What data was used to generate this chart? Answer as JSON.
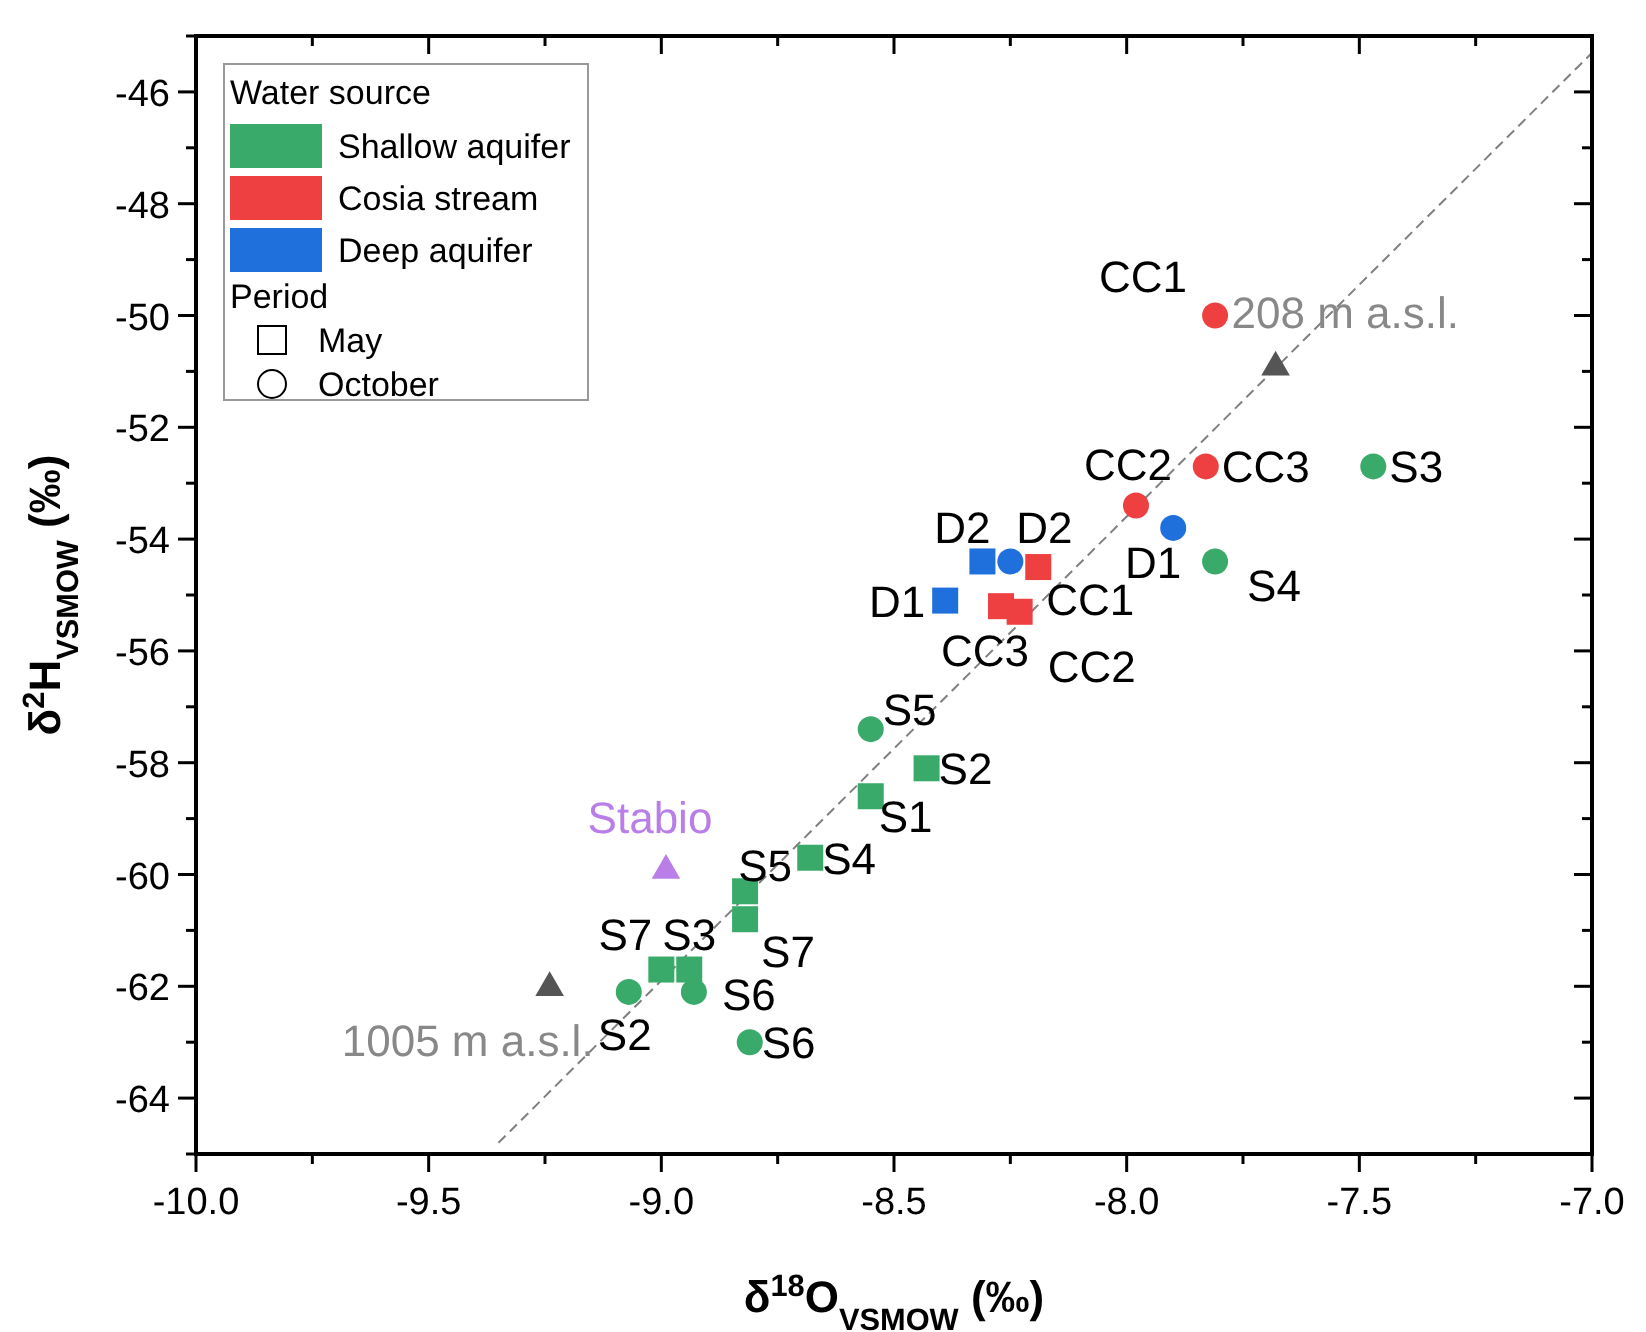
{
  "chart_data": {
    "type": "scatter",
    "xlabel": "δ$^{18}$O$_{VSMOW}$ (‰)",
    "ylabel": "δ$^{2}$H$_{VSMOW}$ (‰)",
    "legend_title": "Water source",
    "legend": "top left",
    "grid": false,
    "xlim": [
      -10,
      -7
    ],
    "ylim": [
      -65,
      -45
    ],
    "xticks": [
      {
        "value": -10,
        "label": "-10.0"
      },
      {
        "value": -9.75,
        "label": null
      },
      {
        "value": -9.5,
        "label": "-9.5"
      },
      {
        "value": -9.25,
        "label": null
      },
      {
        "value": -9,
        "label": "-9.0"
      },
      {
        "value": -8.75,
        "label": null
      },
      {
        "value": -8.5,
        "label": "-8.5"
      },
      {
        "value": -8.25,
        "label": null
      },
      {
        "value": -8,
        "label": "-8.0"
      },
      {
        "value": -7.75,
        "label": null
      },
      {
        "value": -7.5,
        "label": "-7.5"
      },
      {
        "value": -7.25,
        "label": null
      },
      {
        "value": -7,
        "label": "-7.0"
      }
    ],
    "yticks": [
      {
        "value": -65,
        "label": null
      },
      -64,
      {
        "value": -63,
        "label": null
      },
      -62,
      {
        "value": -61,
        "label": null
      },
      -60,
      {
        "value": -59,
        "label": null
      },
      -58,
      {
        "value": -57,
        "label": null
      },
      -56,
      {
        "value": -55,
        "label": null
      },
      -54,
      {
        "value": -53,
        "label": null
      },
      -52,
      {
        "value": -51,
        "label": null
      },
      -50,
      {
        "value": -49,
        "label": null
      },
      -48,
      {
        "value": -47,
        "label": null
      },
      -46,
      {
        "value": -45,
        "label": null
      }
    ],
    "series": [
      {
        "type": "line",
        "line_style": "dashed",
        "color": "#808080",
        "x": [
          -9.35,
          -7.0
        ],
        "values": [
          -64.8,
          -45.3
        ]
      },
      {
        "name": "Shallow aquifer",
        "color": "#3aaa6a",
        "marker": "square",
        "x": [
          -8.43,
          -8.55,
          -8.68,
          -8.82,
          -8.82,
          -9.0,
          -8.94
        ],
        "values": [
          -58.1,
          -58.6,
          -59.7,
          -60.3,
          -60.8,
          -61.7,
          -61.7
        ]
      },
      {
        "color": "#3aaa6a",
        "marker": "circle",
        "x": [
          -8.55,
          -9.07,
          -8.93,
          -8.81,
          -7.47,
          -7.81
        ],
        "values": [
          -57.4,
          -62.1,
          -62.1,
          -63.0,
          -52.7,
          -54.4
        ]
      },
      {
        "name": "Cosia stream",
        "color": "#ee4040",
        "marker": "square",
        "x": [
          -8.19,
          -8.27,
          -8.23
        ],
        "values": [
          -54.5,
          -55.2,
          -55.3
        ]
      },
      {
        "color": "#ee4040",
        "marker": "circle",
        "x": [
          -7.81,
          -7.83,
          -7.98
        ],
        "values": [
          -50.0,
          -52.7,
          -53.4
        ]
      },
      {
        "name": "Deep aquifer",
        "color": "#1f6fdc",
        "marker": "square",
        "x": [
          -8.31,
          -8.39
        ],
        "values": [
          -54.4,
          -55.1
        ]
      },
      {
        "color": "#1f6fdc",
        "marker": "circle",
        "x": [
          -8.25,
          -7.9
        ],
        "values": [
          -54.4,
          -53.8
        ]
      },
      {
        "color": "#555555",
        "marker": "triangle",
        "x": [
          -7.68,
          -9.24
        ],
        "values": [
          -50.9,
          -62.0
        ]
      },
      {
        "color": "#b97ee8",
        "marker": "triangle",
        "x": [
          -8.99
        ],
        "values": [
          -59.9
        ]
      }
    ],
    "annotations": [
      "Period",
      "May",
      "October",
      {
        "text": "CC1",
        "x": -7.81,
        "y": -50.0
      },
      {
        "text": "208 m a.s.l.",
        "x": -7.68,
        "y": -50.9
      },
      {
        "text": "CC2",
        "x": -7.98,
        "y": -53.4
      },
      {
        "text": "CC3",
        "x": -7.83,
        "y": -52.7
      },
      {
        "text": "S3",
        "x": -7.47,
        "y": -52.7
      },
      {
        "text": "D1",
        "x": -7.9,
        "y": -53.8
      },
      {
        "text": "S4",
        "x": -7.81,
        "y": -54.4
      },
      {
        "text": "D2",
        "x": -8.31,
        "y": -54.4
      },
      {
        "text": "D2",
        "x": -8.25,
        "y": -54.4
      },
      {
        "text": "D1",
        "x": -8.39,
        "y": -55.1
      },
      {
        "text": "CC1",
        "x": -8.19,
        "y": -54.5
      },
      {
        "text": "CC3",
        "x": -8.27,
        "y": -55.2
      },
      {
        "text": "CC2",
        "x": -8.23,
        "y": -55.3
      },
      {
        "text": "S5",
        "x": -8.55,
        "y": -57.4
      },
      {
        "text": "S2",
        "x": -8.43,
        "y": -58.1
      },
      {
        "text": "S1",
        "x": -8.55,
        "y": -58.6
      },
      {
        "text": "Stabio",
        "x": -8.99,
        "y": -59.9
      },
      {
        "text": "S4",
        "x": -8.68,
        "y": -59.7
      },
      {
        "text": "S5",
        "x": -8.82,
        "y": -60.3
      },
      {
        "text": "S7",
        "x": -8.82,
        "y": -60.8
      },
      {
        "text": "S7",
        "x": -9.0,
        "y": -61.7
      },
      {
        "text": "S3",
        "x": -8.94,
        "y": -61.7
      },
      {
        "text": "S6",
        "x": -8.93,
        "y": -62.1
      },
      {
        "text": "S2",
        "x": -9.07,
        "y": -62.1
      },
      {
        "text": "S6",
        "x": -8.81,
        "y": -63.0
      },
      {
        "text": "1005 m a.s.l.",
        "x": -9.24,
        "y": -62.0
      }
    ]
  }
}
